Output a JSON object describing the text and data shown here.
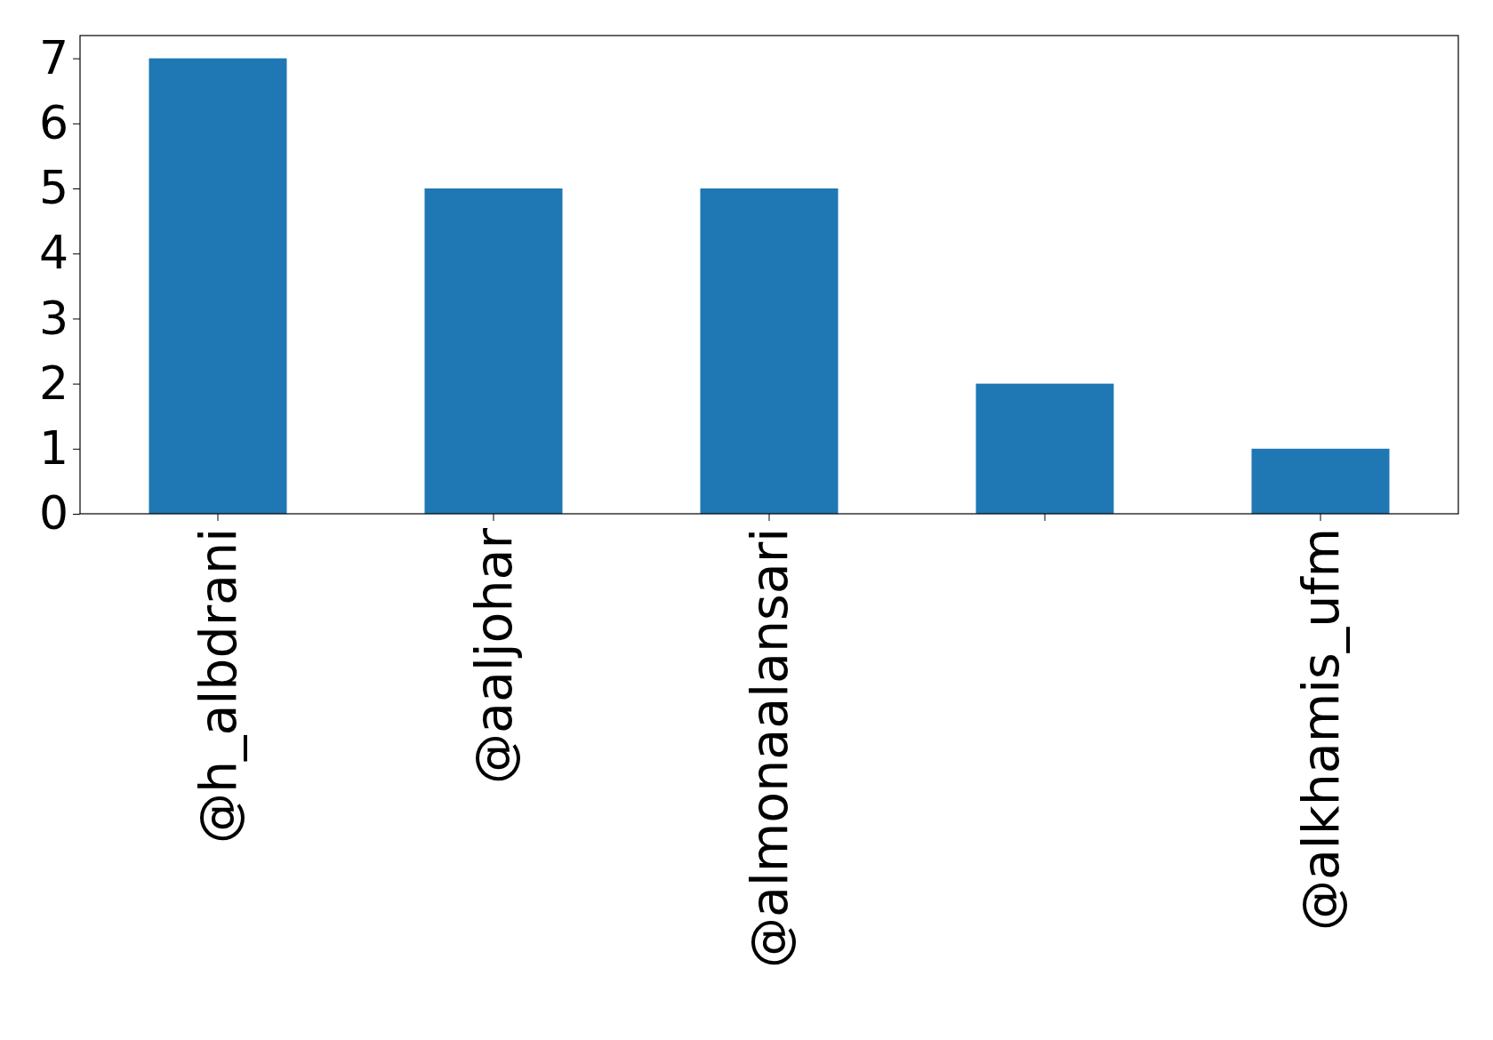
{
  "chart_data": {
    "type": "bar",
    "categories": [
      "@h_albdrani",
      "@aaljohar",
      "@almonaalansari",
      null,
      "@alkhamis_ufm"
    ],
    "values": [
      7,
      5,
      5,
      2,
      1
    ],
    "color": "#1f77b4",
    "ylim": [
      0,
      7.35
    ],
    "yticks": [
      0,
      1,
      2,
      3,
      4,
      5,
      6,
      7
    ],
    "grid": false
  }
}
